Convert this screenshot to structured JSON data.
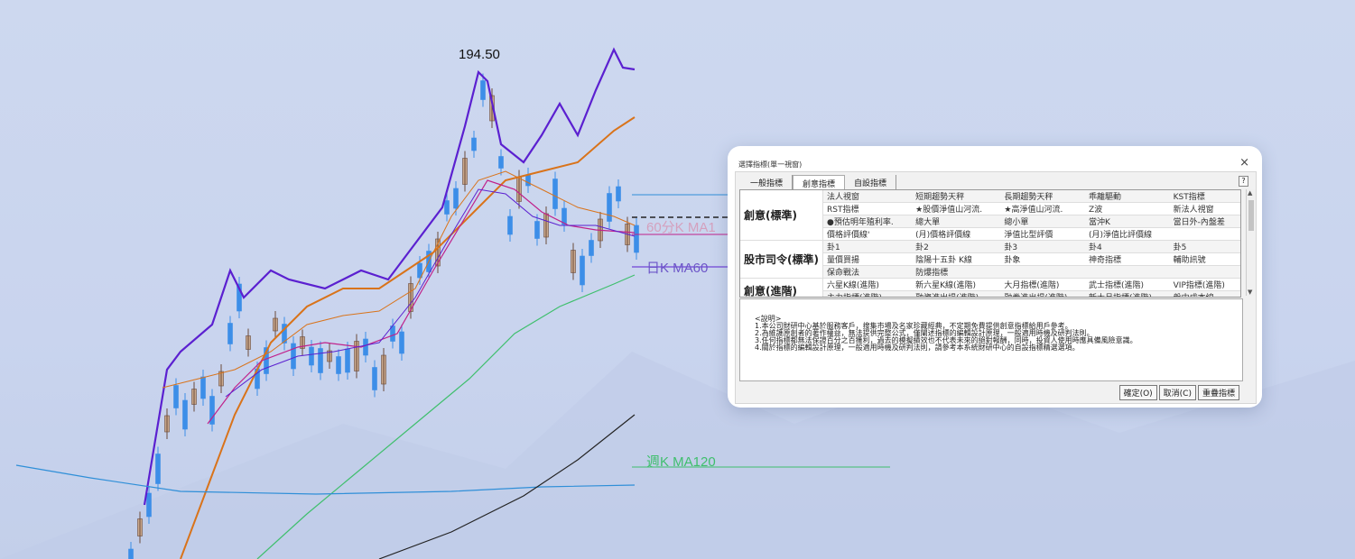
{
  "chart": {
    "price_high": "194.50",
    "labels": {
      "ma60": "日K MA60",
      "ma120": "週K MA120",
      "faint": "60分K MA1"
    },
    "colors": {
      "up_candle": "#3c8ee8",
      "down_candle": "#c9a88c",
      "ma_purple": "#5b20d0",
      "ma_orange": "#d9731a",
      "ma_green": "#3fbf6d",
      "ma_blue": "#2f8fd8",
      "ma_black": "#222222",
      "ma_magenta": "#c0208a"
    }
  },
  "dialog": {
    "title": "選擇指標(單一視窗)",
    "close": "×",
    "tabs": [
      "一般指標",
      "創意指標",
      "自設指標"
    ],
    "active_tab": "創意指標",
    "help": "?",
    "groups": [
      {
        "category": "創意(標準)",
        "rows": [
          [
            "法人視窗",
            "短期趨勢天秤",
            "長期趨勢天秤",
            "乖離驅動",
            "KST指標"
          ],
          [
            "RST指標",
            "★股價淨值山河流.",
            "★高淨值山河流.",
            "Z波",
            "新法人視窗"
          ],
          [
            "●預估明年殖利率.",
            "總大單",
            "總小單",
            "當沖K",
            "當日外-內盤差"
          ],
          [
            "價格評價線'",
            "(月)價格評價線",
            "淨值比型評價",
            "(月)淨值比評價線",
            ""
          ]
        ]
      },
      {
        "category": "股市司令(標準)",
        "rows": [
          [
            "卦1",
            "卦2",
            "卦3",
            "卦4",
            "卦5"
          ],
          [
            "量價買揚",
            "陰陽十五卦 K線",
            "卦象",
            "神奇指標",
            "輔助訊號"
          ],
          [
            "保命戰法",
            "防爆指標",
            "",
            "",
            ""
          ]
        ]
      },
      {
        "category": "創意(進階)",
        "rows": [
          [
            "六星K線(進階)",
            "新六星K線(進階)",
            "大月指標(進階)",
            "武士指標(進階)",
            "VIP指標(進階)"
          ],
          [
            "主力指標(進階)",
            "融資進出場(進階)",
            "融券進出場(進階)",
            "新大月指標(進階)",
            "盤中成本線"
          ]
        ]
      }
    ],
    "notes": [
      "<說明>",
      "1.本公司財研中心基於服務客戶，搜集市場及名家珍藏經典，不定期免費提供創意指標給用戶參考。",
      "2.為維護原創者的著作權益，無法提供完整公式，僅闡述指標的編輯設計原理，一般適用時機及研判法則。",
      "3.任何指標都無法保證百分之百獲利，過去的模擬績效也不代表未來的絕對報酬，同時，投資人使用時應具備風險意識。",
      "4.關於指標的編輯設計原理，一般適用時機及研判法則，請參考本系統財研中心的自設指標精選選項。"
    ],
    "buttons": {
      "ok": "確定(O)",
      "cancel": "取消(C)",
      "overlay": "重疊指標"
    }
  }
}
